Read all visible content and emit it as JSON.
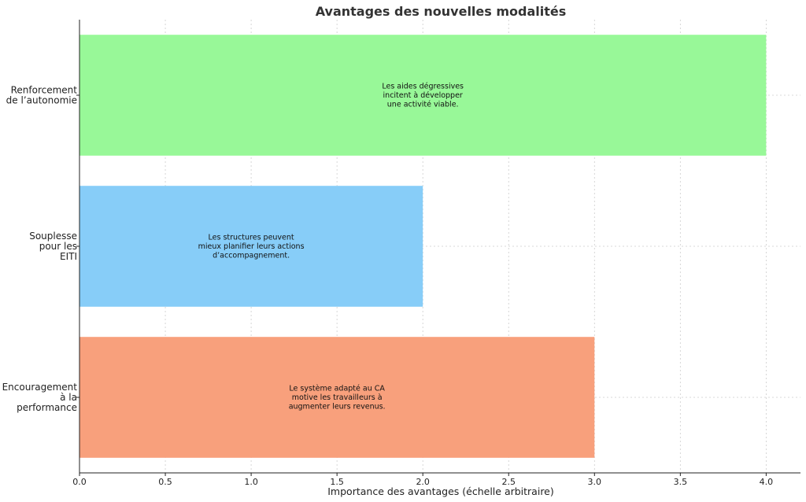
{
  "chart_data": {
    "type": "bar",
    "orientation": "horizontal",
    "title": "Avantages des nouvelles modalités",
    "xlabel": "Importance des avantages (échelle arbitraire)",
    "ylabel": "",
    "xlim": [
      0,
      4.2
    ],
    "xticks": [
      "0.0",
      "0.5",
      "1.0",
      "1.5",
      "2.0",
      "2.5",
      "3.0",
      "3.5",
      "4.0"
    ],
    "grid": true,
    "categories": [
      [
        "Renforcement",
        "de l’autonomie"
      ],
      [
        "Souplesse",
        "pour les",
        "EITI"
      ],
      [
        "Encouragement",
        "à la",
        "performance"
      ]
    ],
    "values": [
      4,
      2,
      3
    ],
    "colors": [
      "#98f898",
      "#87cdf8",
      "#f8a07c"
    ],
    "annotations": [
      [
        "Les aides dégressives",
        "incitent à développer",
        "une activité viable."
      ],
      [
        "Les structures peuvent",
        "mieux planifier leurs actions",
        "d’accompagnement."
      ],
      [
        "Le système adapté au CA",
        "motive les travailleurs à",
        "augmenter leurs revenus."
      ]
    ]
  }
}
